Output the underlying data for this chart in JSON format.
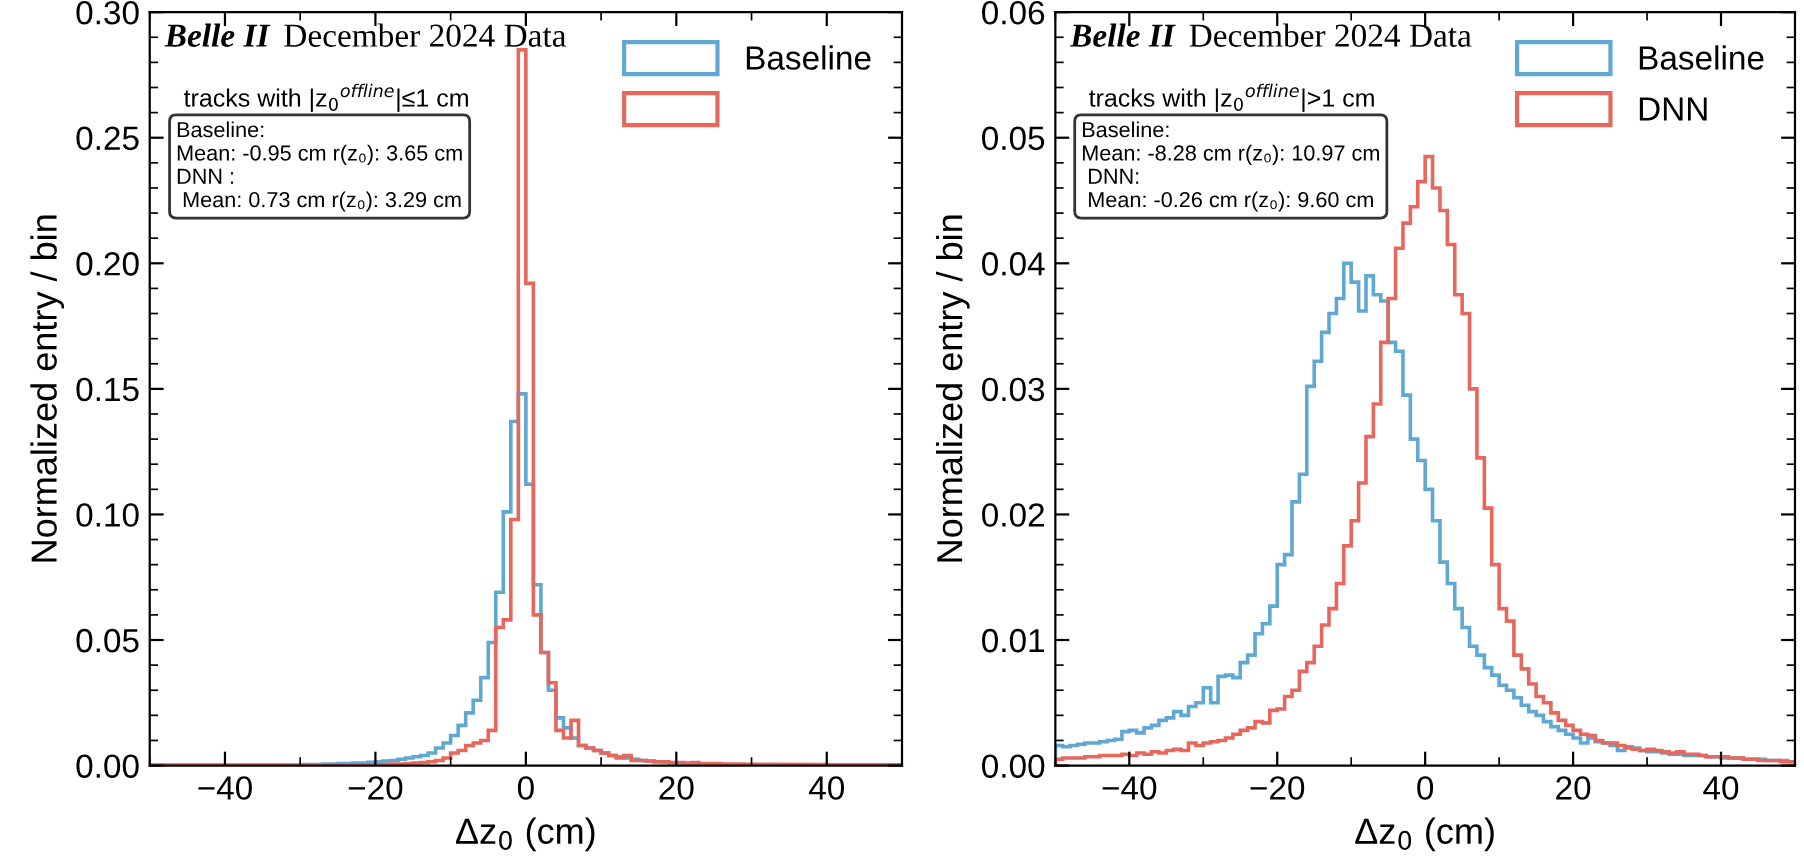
{
  "chart_data": [
    {
      "type": "histogram",
      "xlabel": "Δz$_{0}$ (cm)",
      "ylabel": "Normalized entry / bin",
      "annotations": [
        "Belle II",
        "December 2024 Data",
        "tracks with |z$_{0}$$^{offline}$|≤1 cm",
        "Baseline:\nMean: -0.95 cm r(z₀): 3.65 cm\nDNN :\n Mean: 0.73 cm r(z₀): 3.29 cm"
      ],
      "bins": [
        -50,
        -49,
        -48,
        -47,
        -46,
        -45,
        -44,
        -43,
        -42,
        -41,
        -40,
        -39,
        -38,
        -37,
        -36,
        -35,
        -34,
        -33,
        -32,
        -31,
        -30,
        -29,
        -28,
        -27,
        -26,
        -25,
        -24,
        -23,
        -22,
        -21,
        -20,
        -19,
        -18,
        -17,
        -16,
        -15,
        -14,
        -13,
        -12,
        -11,
        -10,
        -9,
        -8,
        -7,
        -6,
        -5,
        -4,
        -3,
        -2,
        -1,
        0,
        1,
        2,
        3,
        4,
        5,
        6,
        7,
        8,
        9,
        10,
        11,
        12,
        13,
        14,
        15,
        16,
        17,
        18,
        19,
        20,
        21,
        22,
        23,
        24,
        25,
        26,
        27,
        28,
        29,
        30,
        31,
        32,
        33,
        34,
        35,
        36,
        37,
        38,
        39,
        40,
        41,
        42,
        43,
        44,
        45,
        46,
        47,
        48,
        49,
        50
      ],
      "series": [
        {
          "name": "Baseline",
          "color": "#5fa8d3",
          "values": [
            0.0002,
            0.0002,
            0.0002,
            0.0002,
            0.0002,
            0.0002,
            0.0002,
            0.0002,
            0.0002,
            0.0002,
            0.0002,
            0.0002,
            0.0002,
            0.0002,
            0.0002,
            0.0002,
            0.0002,
            0.0002,
            0.0002,
            0.0002,
            0.0004,
            0.0005,
            0.0005,
            0.0006,
            0.0007,
            0.0008,
            0.0009,
            0.001,
            0.0011,
            0.0013,
            0.0015,
            0.0018,
            0.002,
            0.0025,
            0.003,
            0.0035,
            0.004,
            0.005,
            0.007,
            0.009,
            0.012,
            0.016,
            0.021,
            0.026,
            0.035,
            0.049,
            0.069,
            0.101,
            0.137,
            0.148,
            0.112,
            0.072,
            0.045,
            0.03,
            0.019,
            0.015,
            0.011,
            0.008,
            0.007,
            0.006,
            0.005,
            0.004,
            0.0035,
            0.003,
            0.0025,
            0.002,
            0.0018,
            0.0015,
            0.0013,
            0.0011,
            0.001,
            0.0009,
            0.0008,
            0.0007,
            0.0006,
            0.0005,
            0.0005,
            0.0004,
            0.0004,
            0.0003,
            0.0003,
            0.0003,
            0.0003,
            0.0003,
            0.0003,
            0.0003,
            0.0003,
            0.0003,
            0.0003,
            0.0003,
            0.0002,
            0.0002,
            0.0002,
            0.0002,
            0.0002,
            0.0002,
            0.0002,
            0.0002,
            0.0002,
            0.0002
          ]
        },
        {
          "color": "#e8675d",
          "values": [
            0.0001,
            0.0001,
            0.0001,
            0.0001,
            0.0001,
            0.0001,
            0.0001,
            0.0001,
            0.0001,
            0.0001,
            0.0001,
            0.0001,
            0.0001,
            0.0001,
            0.0001,
            0.0001,
            0.0001,
            0.0001,
            0.0001,
            0.0001,
            0.0002,
            0.0002,
            0.0002,
            0.0002,
            0.0002,
            0.0002,
            0.0002,
            0.0002,
            0.0002,
            0.0002,
            0.0004,
            0.0005,
            0.0006,
            0.0007,
            0.0008,
            0.001,
            0.0012,
            0.0015,
            0.002,
            0.003,
            0.005,
            0.006,
            0.008,
            0.009,
            0.01,
            0.014,
            0.055,
            0.058,
            0.098,
            0.285,
            0.192,
            0.06,
            0.045,
            0.033,
            0.014,
            0.011,
            0.018,
            0.008,
            0.007,
            0.006,
            0.005,
            0.004,
            0.003,
            0.004,
            0.002,
            0.002,
            0.0018,
            0.0015,
            0.0015,
            0.0012,
            0.0012,
            0.001,
            0.0012,
            0.0009,
            0.0008,
            0.0008,
            0.0007,
            0.0006,
            0.0006,
            0.0005,
            0.0004,
            0.0004,
            0.0004,
            0.0004,
            0.0004,
            0.0004,
            0.0004,
            0.0004,
            0.0004,
            0.0004,
            0.0003,
            0.0003,
            0.0003,
            0.0003,
            0.0003,
            0.0003,
            0.0003,
            0.0003,
            0.0003,
            0.0003
          ]
        }
      ],
      "xlim": [
        -50,
        50
      ],
      "xticks": [
        -40,
        -20,
        0,
        20,
        40
      ],
      "ylim": [
        0,
        0.3
      ],
      "yticks": [
        {
          "value": 0,
          "label": "0.00"
        },
        0.05,
        {
          "value": 0.1,
          "label": "0.10"
        },
        0.15,
        {
          "value": 0.2,
          "label": "0.20"
        },
        0.25,
        {
          "value": 0.3,
          "label": "0.30"
        }
      ],
      "grid": false,
      "legend": "top right"
    },
    {
      "type": "histogram",
      "xlabel": "Δz$_{0}$ (cm)",
      "ylabel": "Normalized entry / bin",
      "annotations": [
        "Belle II",
        "December 2024 Data",
        "tracks with |z$_{0}$$^{offline}$|>1 cm",
        "Baseline:\nMean: -8.28 cm r(z₀): 10.97 cm\n DNN:\n Mean: -0.26 cm r(z₀): 9.60 cm"
      ],
      "bins": [
        -50,
        -49,
        -48,
        -47,
        -46,
        -45,
        -44,
        -43,
        -42,
        -41,
        -40,
        -39,
        -38,
        -37,
        -36,
        -35,
        -34,
        -33,
        -32,
        -31,
        -30,
        -29,
        -28,
        -27,
        -26,
        -25,
        -24,
        -23,
        -22,
        -21,
        -20,
        -19,
        -18,
        -17,
        -16,
        -15,
        -14,
        -13,
        -12,
        -11,
        -10,
        -9,
        -8,
        -7,
        -6,
        -5,
        -4,
        -3,
        -2,
        -1,
        0,
        1,
        2,
        3,
        4,
        5,
        6,
        7,
        8,
        9,
        10,
        11,
        12,
        13,
        14,
        15,
        16,
        17,
        18,
        19,
        20,
        21,
        22,
        23,
        24,
        25,
        26,
        27,
        28,
        29,
        30,
        31,
        32,
        33,
        34,
        35,
        36,
        37,
        38,
        39,
        40,
        41,
        42,
        43,
        44,
        45,
        46,
        47,
        48,
        49,
        50
      ],
      "series": [
        {
          "name": "Baseline",
          "color": "#5fa8d3",
          "values": [
            0.0016,
            0.0015,
            0.0016,
            0.0017,
            0.0018,
            0.0018,
            0.0019,
            0.002,
            0.0021,
            0.0027,
            0.0028,
            0.0026,
            0.003,
            0.0032,
            0.0036,
            0.0038,
            0.0043,
            0.004,
            0.0047,
            0.005,
            0.0062,
            0.005,
            0.0071,
            0.0072,
            0.007,
            0.0082,
            0.0088,
            0.0105,
            0.0113,
            0.0127,
            0.016,
            0.0168,
            0.021,
            0.0232,
            0.0302,
            0.0322,
            0.0345,
            0.036,
            0.0372,
            0.04,
            0.0385,
            0.0362,
            0.039,
            0.0375,
            0.037,
            0.0337,
            0.033,
            0.0295,
            0.026,
            0.0243,
            0.022,
            0.0195,
            0.0162,
            0.0145,
            0.0125,
            0.011,
            0.0095,
            0.0088,
            0.0078,
            0.0072,
            0.0064,
            0.006,
            0.0054,
            0.0048,
            0.0043,
            0.004,
            0.0035,
            0.0031,
            0.0028,
            0.0025,
            0.0022,
            0.0018,
            0.0022,
            0.0019,
            0.0018,
            0.0016,
            0.0012,
            0.0015,
            0.0014,
            0.0012,
            0.0011,
            0.0011,
            0.001,
            0.0009,
            0.0009,
            0.0008,
            0.0008,
            0.0008,
            0.0007,
            0.0007,
            0.0006,
            0.0006,
            0.0006,
            0.0005,
            0.0005,
            0.0005,
            0.0004,
            0.0004,
            0.0004,
            0.0003
          ]
        },
        {
          "name": "DNN",
          "color": "#e8675d",
          "values": [
            0.0005,
            0.0006,
            0.0006,
            0.0006,
            0.0007,
            0.0007,
            0.0008,
            0.0008,
            0.0008,
            0.0009,
            0.0008,
            0.001,
            0.0009,
            0.0011,
            0.001,
            0.0012,
            0.0013,
            0.0012,
            0.0018,
            0.0016,
            0.0018,
            0.0019,
            0.002,
            0.0022,
            0.0025,
            0.0028,
            0.003,
            0.0035,
            0.0034,
            0.0044,
            0.0045,
            0.0055,
            0.006,
            0.0075,
            0.0082,
            0.0095,
            0.0112,
            0.0125,
            0.0145,
            0.0175,
            0.0195,
            0.0225,
            0.0262,
            0.0288,
            0.0337,
            0.0372,
            0.0412,
            0.0432,
            0.0445,
            0.0465,
            0.0485,
            0.046,
            0.0442,
            0.0415,
            0.0375,
            0.036,
            0.03,
            0.0245,
            0.0205,
            0.016,
            0.0125,
            0.0115,
            0.0088,
            0.0077,
            0.0065,
            0.0055,
            0.005,
            0.0042,
            0.0036,
            0.0032,
            0.0028,
            0.0025,
            0.0024,
            0.002,
            0.0018,
            0.0018,
            0.0016,
            0.0014,
            0.0013,
            0.0012,
            0.0013,
            0.0012,
            0.0011,
            0.001,
            0.0011,
            0.0009,
            0.0009,
            0.0008,
            0.0007,
            0.0007,
            0.0007,
            0.0006,
            0.0006,
            0.0005,
            0.0005,
            0.0004,
            0.0004,
            0.0004,
            0.0003,
            0.0003
          ]
        }
      ],
      "xlim": [
        -50,
        50
      ],
      "xticks": [
        -40,
        -20,
        0,
        20,
        40
      ],
      "ylim": [
        0,
        0.06
      ],
      "yticks": [
        {
          "value": 0,
          "label": "0.00"
        },
        0.01,
        0.02,
        0.03,
        0.04,
        0.05,
        0.06
      ],
      "grid": false,
      "legend": "top right"
    }
  ]
}
